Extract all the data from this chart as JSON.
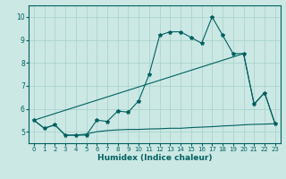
{
  "xlabel": "Humidex (Indice chaleur)",
  "bg_color": "#cce8e4",
  "grid_color": "#aad4ce",
  "line_color": "#006060",
  "xlim": [
    -0.5,
    23.5
  ],
  "ylim": [
    4.5,
    10.5
  ],
  "xticks": [
    0,
    1,
    2,
    3,
    4,
    5,
    6,
    7,
    8,
    9,
    10,
    11,
    12,
    13,
    14,
    15,
    16,
    17,
    18,
    19,
    20,
    21,
    22,
    23
  ],
  "yticks": [
    5,
    6,
    7,
    8,
    9,
    10
  ],
  "line1_x": [
    0,
    1,
    2,
    3,
    4,
    5,
    6,
    7,
    8,
    9,
    10,
    11,
    12,
    13,
    14,
    15,
    16,
    17,
    18,
    19,
    20,
    21,
    22,
    23
  ],
  "line1_y": [
    5.5,
    5.15,
    5.3,
    4.85,
    4.85,
    4.85,
    5.5,
    5.45,
    5.9,
    5.85,
    6.35,
    7.5,
    9.2,
    9.35,
    9.35,
    9.1,
    8.85,
    10.0,
    9.2,
    8.4,
    8.4,
    6.2,
    6.7,
    5.35
  ],
  "line2_x": [
    0,
    20,
    21,
    22,
    23
  ],
  "line2_y": [
    5.5,
    8.4,
    6.2,
    6.7,
    5.35
  ],
  "line3_x": [
    0,
    1,
    2,
    3,
    4,
    5,
    6,
    7,
    8,
    9,
    10,
    11,
    12,
    13,
    14,
    15,
    16,
    17,
    18,
    19,
    20,
    21,
    22,
    23
  ],
  "line3_y": [
    5.5,
    5.15,
    5.3,
    4.85,
    4.85,
    4.9,
    5.0,
    5.05,
    5.08,
    5.1,
    5.1,
    5.12,
    5.13,
    5.15,
    5.15,
    5.18,
    5.2,
    5.22,
    5.25,
    5.27,
    5.3,
    5.32,
    5.33,
    5.35
  ]
}
